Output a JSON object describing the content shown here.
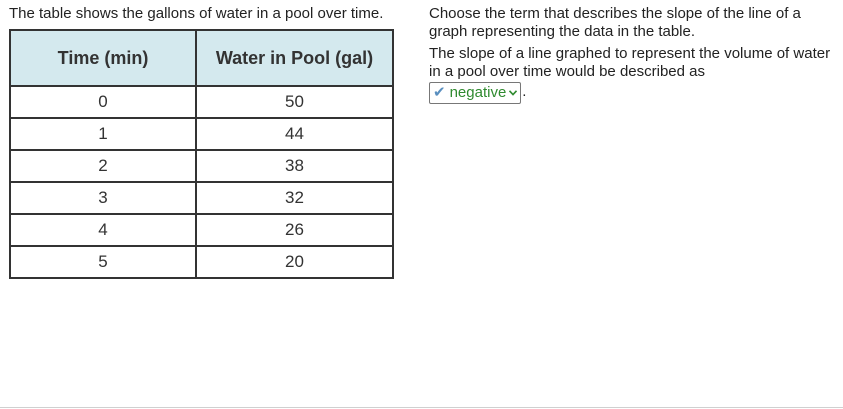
{
  "left": {
    "intro": "The table shows the gallons of water in a pool over time."
  },
  "table": {
    "headers": [
      "Time (min)",
      "Water in Pool (gal)"
    ],
    "rows": [
      [
        "0",
        "50"
      ],
      [
        "1",
        "44"
      ],
      [
        "2",
        "38"
      ],
      [
        "3",
        "32"
      ],
      [
        "4",
        "26"
      ],
      [
        "5",
        "20"
      ]
    ]
  },
  "right": {
    "instruction": "Choose the term that describes the slope of the line of a graph representing the data in the table.",
    "statement": "The slope of a line graphed to represent the volume of water in a pool over time would be described as",
    "answer": {
      "icon": "check-icon",
      "selected_value": "negative",
      "status_color": "#2f8a2f"
    },
    "trailing_punctuation": "."
  }
}
